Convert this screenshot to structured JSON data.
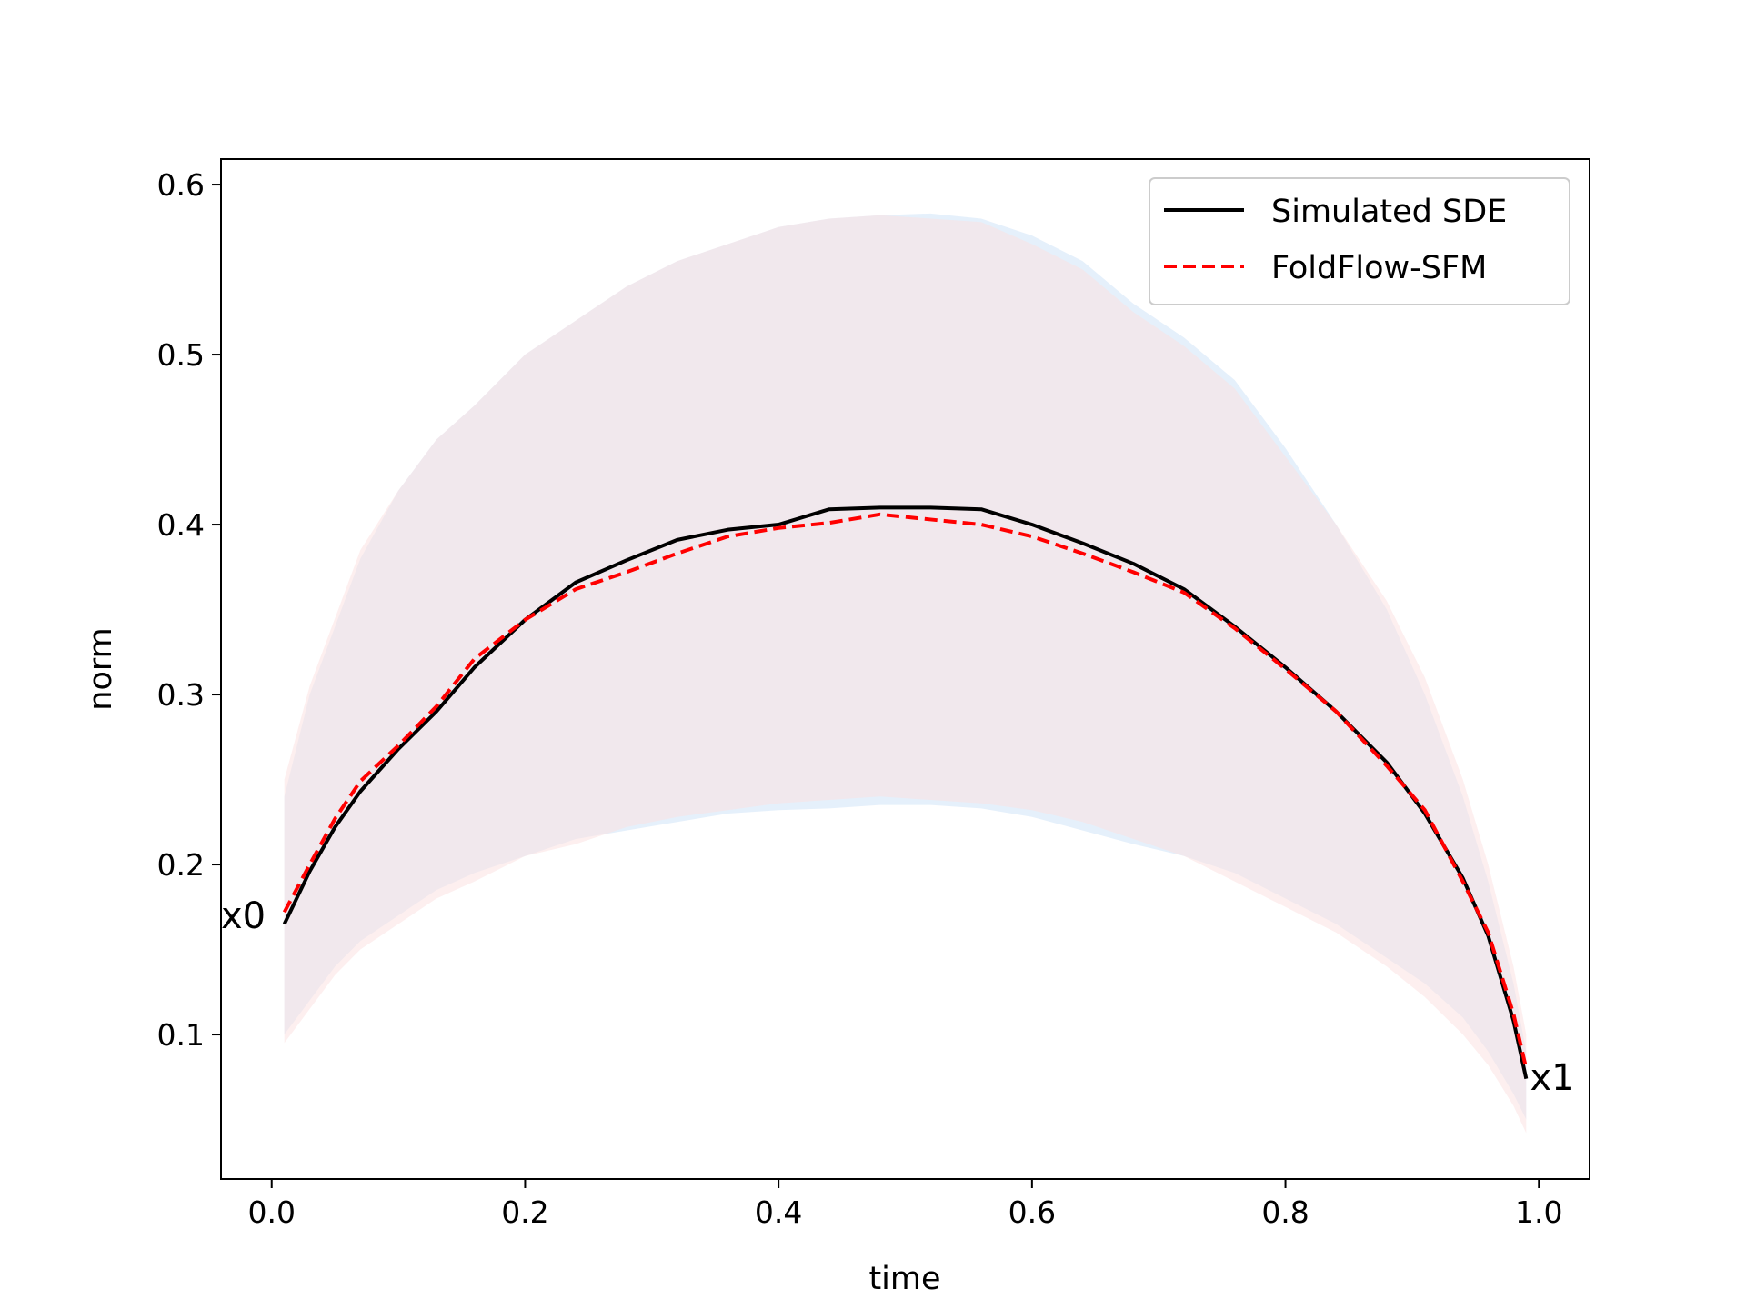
{
  "chart_data": {
    "type": "line",
    "title": "",
    "xlabel": "time",
    "ylabel": "norm",
    "xlim": [
      -0.04,
      1.04
    ],
    "ylim": [
      0.015,
      0.615
    ],
    "xticks": [
      "0.0",
      "0.2",
      "0.4",
      "0.6",
      "0.8",
      "1.0"
    ],
    "yticks": [
      "0.1",
      "0.2",
      "0.3",
      "0.4",
      "0.5",
      "0.6"
    ],
    "grid": false,
    "legend_position": "top-right",
    "x": [
      0.01,
      0.03,
      0.05,
      0.07,
      0.1,
      0.13,
      0.16,
      0.2,
      0.24,
      0.28,
      0.32,
      0.36,
      0.4,
      0.44,
      0.48,
      0.52,
      0.56,
      0.6,
      0.64,
      0.68,
      0.72,
      0.76,
      0.8,
      0.84,
      0.88,
      0.91,
      0.94,
      0.96,
      0.98,
      0.99
    ],
    "series": [
      {
        "name": "Simulated SDE",
        "color": "#000000",
        "style": "solid",
        "values": [
          0.165,
          0.196,
          0.222,
          0.243,
          0.268,
          0.29,
          0.316,
          0.344,
          0.366,
          0.379,
          0.391,
          0.397,
          0.4,
          0.409,
          0.41,
          0.41,
          0.409,
          0.4,
          0.389,
          0.377,
          0.362,
          0.34,
          0.316,
          0.29,
          0.26,
          0.23,
          0.192,
          0.158,
          0.108,
          0.074
        ],
        "band_upper": [
          0.24,
          0.3,
          0.34,
          0.38,
          0.42,
          0.45,
          0.47,
          0.5,
          0.52,
          0.54,
          0.555,
          0.565,
          0.575,
          0.58,
          0.582,
          0.583,
          0.58,
          0.57,
          0.555,
          0.53,
          0.51,
          0.485,
          0.445,
          0.4,
          0.35,
          0.3,
          0.24,
          0.19,
          0.13,
          0.09
        ],
        "band_lower": [
          0.1,
          0.12,
          0.14,
          0.155,
          0.17,
          0.185,
          0.195,
          0.205,
          0.215,
          0.22,
          0.225,
          0.23,
          0.232,
          0.233,
          0.235,
          0.235,
          0.233,
          0.228,
          0.22,
          0.212,
          0.205,
          0.195,
          0.18,
          0.165,
          0.145,
          0.13,
          0.11,
          0.09,
          0.065,
          0.05
        ],
        "band_color": "#cfe3f7"
      },
      {
        "name": "FoldFlow-SFM",
        "color": "#ff0000",
        "style": "dashed",
        "values": [
          0.172,
          0.2,
          0.227,
          0.249,
          0.27,
          0.293,
          0.321,
          0.344,
          0.362,
          0.372,
          0.383,
          0.393,
          0.398,
          0.401,
          0.406,
          0.403,
          0.4,
          0.393,
          0.383,
          0.372,
          0.36,
          0.339,
          0.315,
          0.29,
          0.258,
          0.232,
          0.19,
          0.16,
          0.112,
          0.08
        ],
        "band_upper": [
          0.25,
          0.305,
          0.345,
          0.385,
          0.42,
          0.45,
          0.47,
          0.5,
          0.52,
          0.54,
          0.555,
          0.565,
          0.575,
          0.58,
          0.582,
          0.58,
          0.578,
          0.565,
          0.55,
          0.525,
          0.505,
          0.48,
          0.44,
          0.4,
          0.355,
          0.31,
          0.25,
          0.2,
          0.14,
          0.1
        ],
        "band_lower": [
          0.095,
          0.115,
          0.135,
          0.15,
          0.165,
          0.18,
          0.19,
          0.205,
          0.212,
          0.222,
          0.228,
          0.232,
          0.236,
          0.238,
          0.24,
          0.238,
          0.236,
          0.232,
          0.225,
          0.215,
          0.205,
          0.19,
          0.175,
          0.16,
          0.14,
          0.122,
          0.1,
          0.082,
          0.058,
          0.042
        ],
        "band_color": "#fbe2e2"
      }
    ],
    "annotations": [
      {
        "text": "x0",
        "x": -0.04,
        "y": 0.17
      },
      {
        "text": "x1",
        "x": 0.993,
        "y": 0.075
      }
    ]
  }
}
